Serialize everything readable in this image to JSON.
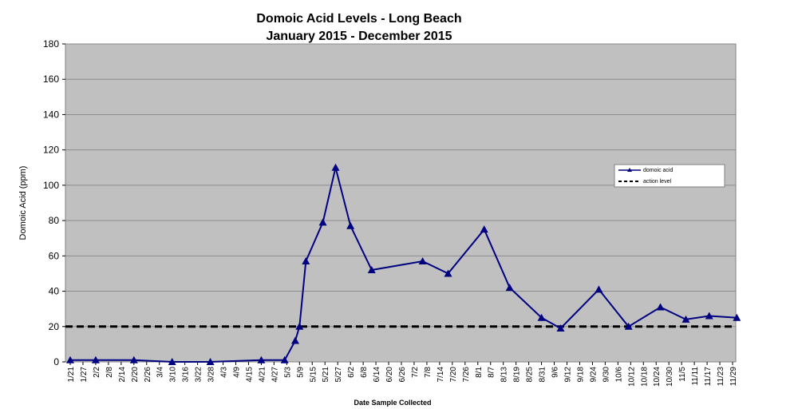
{
  "chart_data": {
    "type": "line",
    "title": "Domoic Acid Levels - Long Beach",
    "subtitle": "January 2015 - December 2015",
    "xlabel": "Date Sample Collected",
    "ylabel": "Domoic Acid (ppm)",
    "ylim": [
      0,
      180
    ],
    "yticks": [
      0,
      20,
      40,
      60,
      80,
      100,
      120,
      140,
      160,
      180
    ],
    "grid": true,
    "legend_position": "right",
    "x_tick_labels": [
      "1/21",
      "1/27",
      "2/2",
      "2/8",
      "2/14",
      "2/20",
      "2/26",
      "3/4",
      "3/10",
      "3/16",
      "3/22",
      "3/28",
      "4/3",
      "4/9",
      "4/15",
      "4/21",
      "4/27",
      "5/3",
      "5/9",
      "5/15",
      "5/21",
      "5/27",
      "6/2",
      "6/8",
      "6/14",
      "6/20",
      "6/26",
      "7/2",
      "7/8",
      "7/14",
      "7/20",
      "7/26",
      "8/1",
      "8/7",
      "8/13",
      "8/19",
      "8/25",
      "8/31",
      "9/6",
      "9/12",
      "9/18",
      "9/24",
      "9/30",
      "10/6",
      "10/12",
      "10/18",
      "10/24",
      "10/30",
      "11/5",
      "11/11",
      "11/17",
      "11/23",
      "11/29"
    ],
    "series": [
      {
        "name": "domoic acid",
        "color": "#000080",
        "marker": "triangle",
        "points": [
          {
            "x": "1/21",
            "y": 1
          },
          {
            "x": "2/2",
            "y": 1
          },
          {
            "x": "2/20",
            "y": 1
          },
          {
            "x": "3/10",
            "y": 0
          },
          {
            "x": "3/28",
            "y": 0
          },
          {
            "x": "4/21",
            "y": 1
          },
          {
            "x": "5/2",
            "y": 1
          },
          {
            "x": "5/7",
            "y": 12
          },
          {
            "x": "5/9",
            "y": 20
          },
          {
            "x": "5/12",
            "y": 57
          },
          {
            "x": "5/20",
            "y": 79
          },
          {
            "x": "5/26",
            "y": 110
          },
          {
            "x": "6/2",
            "y": 77
          },
          {
            "x": "6/12",
            "y": 52
          },
          {
            "x": "7/6",
            "y": 57
          },
          {
            "x": "7/18",
            "y": 50
          },
          {
            "x": "8/4",
            "y": 75
          },
          {
            "x": "8/16",
            "y": 42
          },
          {
            "x": "8/31",
            "y": 25
          },
          {
            "x": "9/9",
            "y": 19
          },
          {
            "x": "9/27",
            "y": 41
          },
          {
            "x": "10/11",
            "y": 20
          },
          {
            "x": "10/26",
            "y": 31
          },
          {
            "x": "11/7",
            "y": 24
          },
          {
            "x": "11/18",
            "y": 26
          },
          {
            "x": "12/1",
            "y": 25
          }
        ]
      },
      {
        "name": "action level",
        "color": "#000000",
        "style": "dashed",
        "value": 20
      }
    ]
  },
  "colors": {
    "plot_background": "#c0c0c0",
    "gridline": "#8c8c8c",
    "series_line": "#000080",
    "action_level": "#000000"
  }
}
